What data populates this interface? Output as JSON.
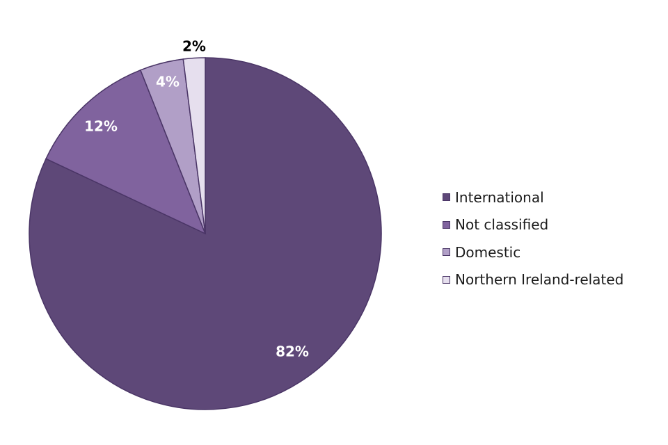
{
  "chart_data": {
    "type": "pie",
    "title": "",
    "slices": [
      {
        "label": "International",
        "value": 82,
        "display": "82%",
        "color": "#5e4878",
        "label_color": "#ffffff"
      },
      {
        "label": "Not classified",
        "value": 12,
        "display": "12%",
        "color": "#80639e",
        "label_color": "#ffffff"
      },
      {
        "label": "Domestic",
        "value": 4,
        "display": "4%",
        "color": "#b19fc7",
        "label_color": "#ffffff"
      },
      {
        "label": "Northern Ireland-related",
        "value": 2,
        "display": "2%",
        "color": "#e6dfee",
        "label_color": "#000000"
      }
    ],
    "legend_position": "right",
    "start_angle": "12 o'clock",
    "direction": "clockwise"
  }
}
